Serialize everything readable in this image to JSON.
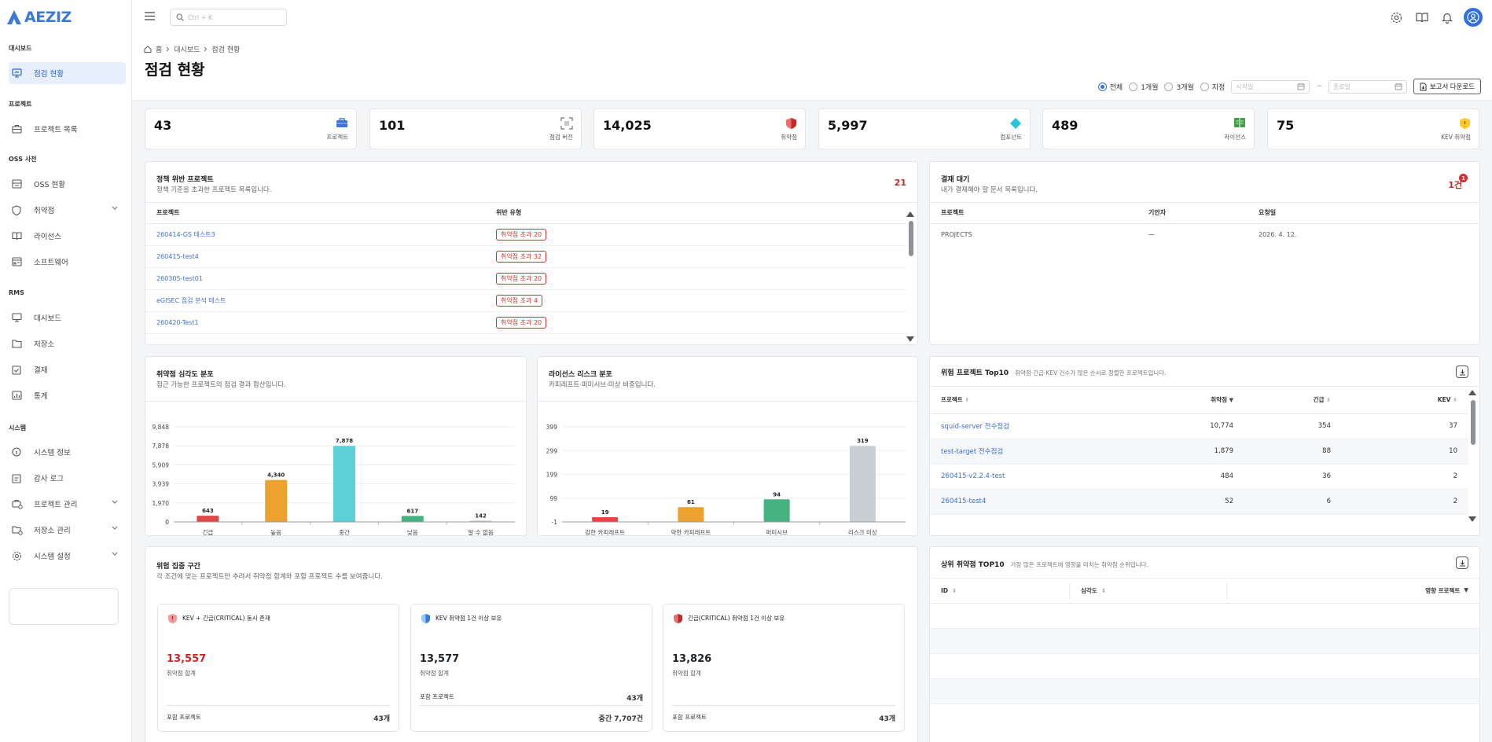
{
  "brand": {
    "name": "AEZIZ",
    "color": "#3a7bd5"
  },
  "sidebar": {
    "sections": [
      {
        "label": "대시보드",
        "items": [
          {
            "label": "점검 현황",
            "icon": "monitor-icon",
            "active": true
          }
        ]
      },
      {
        "label": "프로젝트",
        "items": [
          {
            "label": "프로젝트 목록",
            "icon": "briefcase-icon"
          }
        ]
      },
      {
        "label": "OSS 사전",
        "items": [
          {
            "label": "OSS 현황",
            "icon": "database-icon"
          },
          {
            "label": "취약점",
            "icon": "shield-icon",
            "expandable": true
          },
          {
            "label": "라이선스",
            "icon": "book-icon"
          },
          {
            "label": "소프트웨어",
            "icon": "app-window-icon"
          }
        ]
      },
      {
        "label": "RMS",
        "items": [
          {
            "label": "대시보드",
            "icon": "monitor-icon"
          },
          {
            "label": "저장소",
            "icon": "folder-icon"
          },
          {
            "label": "결재",
            "icon": "clipboard-check-icon"
          },
          {
            "label": "통계",
            "icon": "chart-icon"
          }
        ]
      },
      {
        "label": "시스템",
        "items": [
          {
            "label": "시스템 정보",
            "icon": "info-icon"
          },
          {
            "label": "감사 로그",
            "icon": "clipboard-icon"
          },
          {
            "label": "프로젝트 관리",
            "icon": "briefcase-gear-icon",
            "expandable": true
          },
          {
            "label": "저장소 관리",
            "icon": "folder-gear-icon",
            "expandable": true
          },
          {
            "label": "시스템 설정",
            "icon": "gear-icon",
            "expandable": true
          }
        ]
      }
    ]
  },
  "topbar": {
    "search_placeholder": "Ctrl + K"
  },
  "breadcrumb": [
    "홈",
    "대시보드",
    "점검 현황"
  ],
  "page_title": "점검 현황",
  "filters": {
    "periods": [
      "전체",
      "1개월",
      "3개월",
      "지정"
    ],
    "selected": "전체",
    "start_placeholder": "시작일",
    "end_placeholder": "종료일",
    "separator": "~",
    "download_label": "보고서 다운로드"
  },
  "kpis": [
    {
      "value": "43",
      "label": "프로젝트",
      "icon": "toolbox-icon"
    },
    {
      "value": "101",
      "label": "점검 버전",
      "icon": "scan-icon"
    },
    {
      "value": "14,025",
      "label": "취약점",
      "icon": "shield-alert-icon"
    },
    {
      "value": "5,997",
      "label": "컴포넌트",
      "icon": "diamond-icon"
    },
    {
      "value": "489",
      "label": "라이선스",
      "icon": "license-book-icon"
    },
    {
      "value": "75",
      "label": "KEV 취약점",
      "icon": "kev-shield-icon"
    }
  ],
  "policy": {
    "title": "정책 위반 프로젝트",
    "subtitle": "정책 기준을 초과한 프로젝트 목록입니다.",
    "count": "21",
    "columns": [
      "프로젝트",
      "위반 유형"
    ],
    "rows": [
      {
        "project": "260414-GS 테스트3",
        "violation": "취약점 초과 20"
      },
      {
        "project": "260415-test4",
        "violation": "취약점 초과 32"
      },
      {
        "project": "260305-test01",
        "violation": "취약점 초과 20"
      },
      {
        "project": "eGISEC 점검 분석 테스트",
        "violation": "취약점 초과 4"
      },
      {
        "project": "260420-Test1",
        "violation": "취약점 초과 20"
      }
    ]
  },
  "approval": {
    "title": "결재 대기",
    "subtitle": "내가 결재해야 할 문서 목록입니다.",
    "count": "1건",
    "badge": "1",
    "columns": [
      "프로젝트",
      "기안자",
      "요청일"
    ],
    "rows": [
      {
        "project": "PROJECTS",
        "drafter": "—",
        "date": "2026. 4. 12."
      }
    ]
  },
  "severity_chart": {
    "title": "취약점 심각도 분포",
    "subtitle": "접근 가능한 프로젝트의 점검 결과 합산입니다.",
    "chart_data": {
      "type": "bar",
      "categories": [
        "긴급",
        "높음",
        "중간",
        "낮음",
        "알 수 없음"
      ],
      "values": [
        643,
        4340,
        7878,
        617,
        142
      ],
      "colors": [
        "#e04848",
        "#eda12e",
        "#5bd0d6",
        "#46b27f",
        "#c9ced5"
      ],
      "yticks": [
        "0",
        "1,970",
        "3,939",
        "5,909",
        "7,878",
        "9,848"
      ],
      "ylim": [
        0,
        9848
      ],
      "grid": true
    }
  },
  "license_chart": {
    "title": "라이선스 리스크 분포",
    "subtitle": "카피레프트·퍼미시브·미상 비중입니다.",
    "chart_data": {
      "type": "bar",
      "categories": [
        "강한 카피레프트",
        "약한 카피레프트",
        "퍼미시브",
        "리스크 미상"
      ],
      "values": [
        19,
        61,
        94,
        319
      ],
      "colors": [
        "#e04848",
        "#eda12e",
        "#46b27f",
        "#c9ced5"
      ],
      "yticks": [
        "-1",
        "99",
        "199",
        "299",
        "399"
      ],
      "ylim": [
        -1,
        399
      ],
      "grid": true
    }
  },
  "risk_top10": {
    "title": "위험 프로젝트 Top10",
    "subtitle": "취약점·긴급·KEV 건수가 많은 순서로 정렬한 프로젝트입니다.",
    "columns": [
      "프로젝트",
      "취약점",
      "긴급",
      "KEV"
    ],
    "rows": [
      {
        "project": "squid-server 전수점검",
        "vuln": "10,774",
        "critical": "354",
        "kev": "37"
      },
      {
        "project": "test-target 전수점검",
        "vuln": "1,879",
        "critical": "88",
        "kev": "10"
      },
      {
        "project": "260415-v2.2.4-test",
        "vuln": "484",
        "critical": "36",
        "kev": "2"
      },
      {
        "project": "260415-test4",
        "vuln": "52",
        "critical": "6",
        "kev": "2"
      }
    ]
  },
  "risk_zone": {
    "title": "위험 집중 구간",
    "subtitle": "각 조건에 맞는 프로젝트만 추려서 취약점 합계와 포함 프로젝트 수를 보여줍니다.",
    "cards": [
      {
        "title": "KEV + 긴급(CRITICAL) 동시 존재",
        "value": "13,557",
        "value_label": "취약점 합계",
        "value_color": "#c62828",
        "row_label": "포함 프로젝트",
        "row_value": "43개",
        "extra": ""
      },
      {
        "title": "KEV 취약점 1건 이상 보유",
        "value": "13,577",
        "value_label": "취약점 합계",
        "value_color": "#111111",
        "row_label": "포함 프로젝트",
        "row_value": "43개",
        "extra": "중간 7,707건"
      },
      {
        "title": "긴급(CRITICAL) 취약점 1건 이상 보유",
        "value": "13,826",
        "value_label": "취약점 합계",
        "value_color": "#111111",
        "row_label": "포함 프로젝트",
        "row_value": "43개",
        "extra": ""
      }
    ]
  },
  "top_vuln": {
    "title": "상위 취약점 TOP10",
    "subtitle": "가장 많은 프로젝트에 영향을 미치는 취약점 순위입니다.",
    "columns": [
      "ID",
      "심각도",
      "영향 프로젝트"
    ]
  }
}
